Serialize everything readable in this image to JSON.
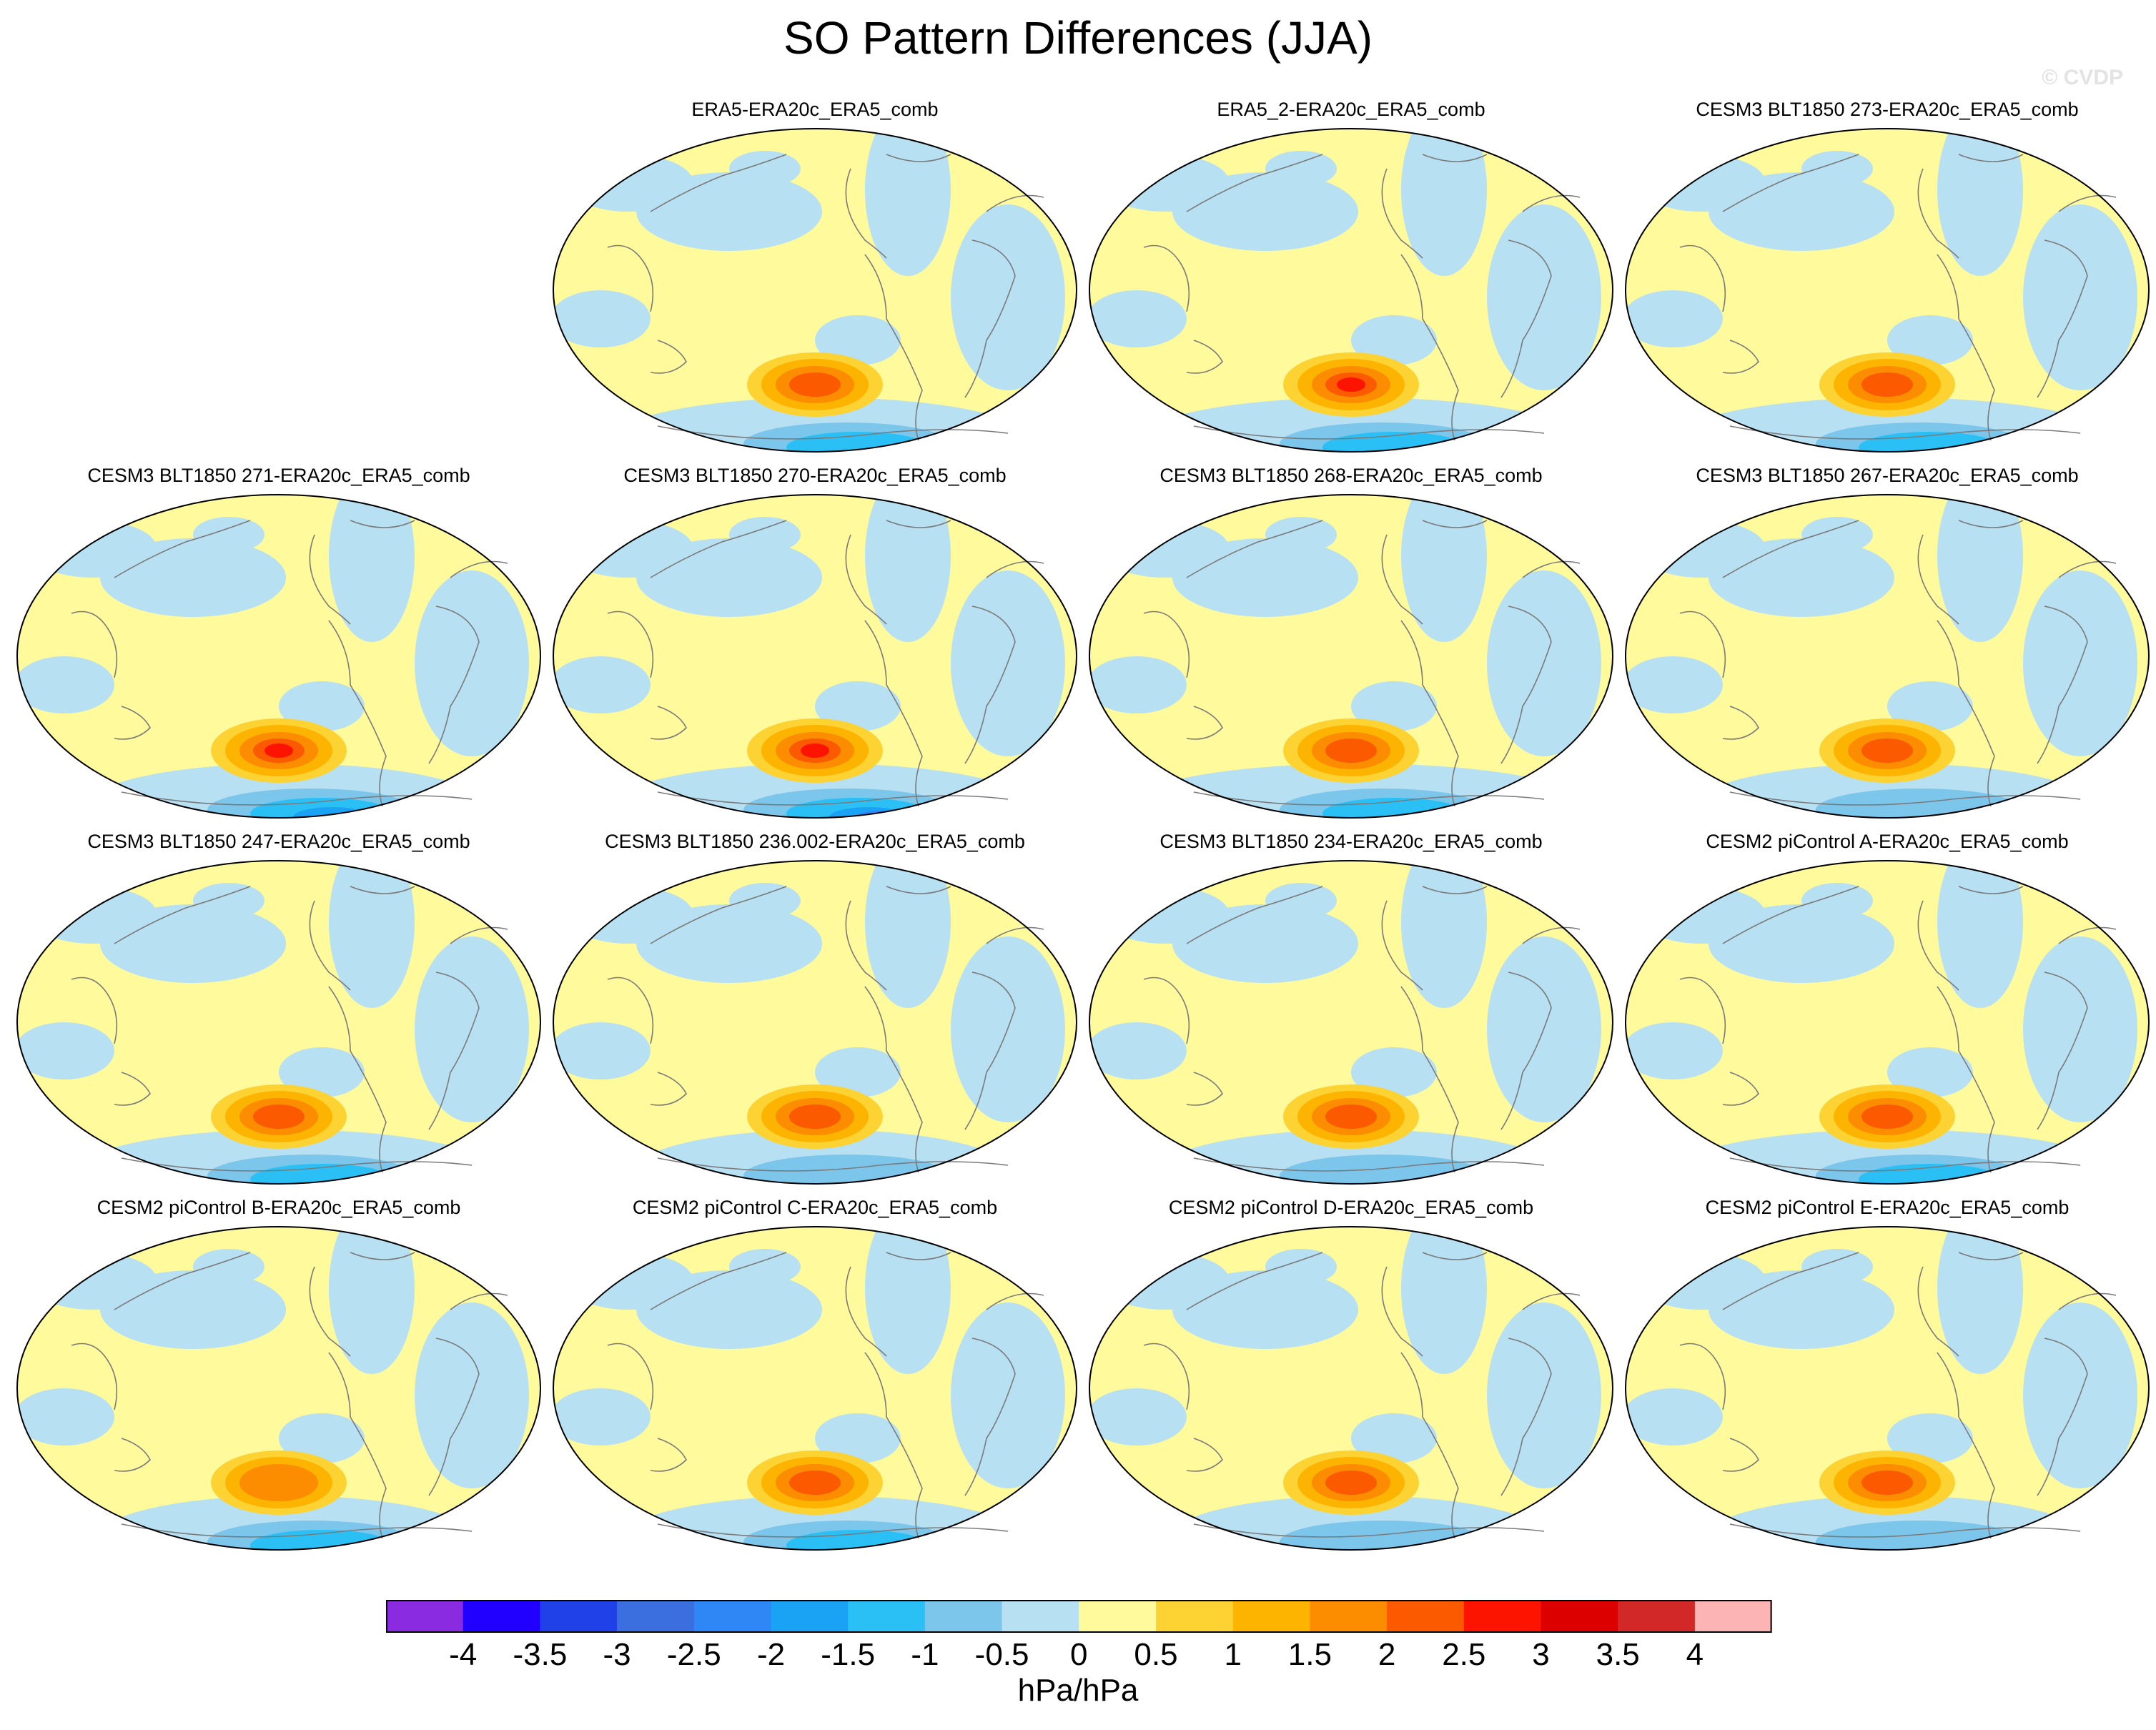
{
  "figure": {
    "title": "SO Pattern Differences (JJA)",
    "watermark": "© CVDP"
  },
  "panels": [
    {
      "title": "ERA5-ERA20c_ERA5_comb",
      "max": 2.0,
      "min": -1.5,
      "neg_band": 0.55
    },
    {
      "title": "ERA5_2-ERA20c_ERA5_comb",
      "max": 2.5,
      "min": -1.5,
      "neg_band": 0.6
    },
    {
      "title": "CESM3 BLT1850 273-ERA20c_ERA5_comb",
      "max": 2.0,
      "min": -1.5,
      "neg_band": 0.6
    },
    {
      "title": "CESM3 BLT1850 271-ERA20c_ERA5_comb",
      "max": 2.5,
      "min": -2.0,
      "neg_band": 0.5
    },
    {
      "title": "CESM3 BLT1850 270-ERA20c_ERA5_comb",
      "max": 2.5,
      "min": -2.5,
      "neg_band": 0.55
    },
    {
      "title": "CESM3 BLT1850 268-ERA20c_ERA5_comb",
      "max": 2.0,
      "min": -1.5,
      "neg_band": 0.65
    },
    {
      "title": "CESM3 BLT1850 267-ERA20c_ERA5_comb",
      "max": 2.0,
      "min": -1.0,
      "neg_band": 0.5
    },
    {
      "title": "CESM3 BLT1850 247-ERA20c_ERA5_comb",
      "max": 2.0,
      "min": -1.5,
      "neg_band": 0.55
    },
    {
      "title": "CESM3 BLT1850 236.002-ERA20c_ERA5_comb",
      "max": 2.0,
      "min": -1.0,
      "neg_band": 0.45
    },
    {
      "title": "CESM3 BLT1850 234-ERA20c_ERA5_comb",
      "max": 2.0,
      "min": -1.0,
      "neg_band": 0.5
    },
    {
      "title": "CESM2 piControl A-ERA20c_ERA5_comb",
      "max": 2.0,
      "min": -1.5,
      "neg_band": 0.6
    },
    {
      "title": "CESM2 piControl B-ERA20c_ERA5_comb",
      "max": 1.5,
      "min": -1.5,
      "neg_band": 0.45
    },
    {
      "title": "CESM2 piControl C-ERA20c_ERA5_comb",
      "max": 2.0,
      "min": -1.5,
      "neg_band": 0.5
    },
    {
      "title": "CESM2 piControl D-ERA20c_ERA5_comb",
      "max": 2.0,
      "min": -1.0,
      "neg_band": 0.45
    },
    {
      "title": "CESM2 piControl E-ERA20c_ERA5_comb",
      "max": 2.0,
      "min": -1.0,
      "neg_band": 0.45
    }
  ],
  "colorbar": {
    "units": "hPa/hPa",
    "colors": [
      "#8a2be2",
      "#2200ff",
      "#2040e8",
      "#3b6fe0",
      "#2f86f5",
      "#1aa3f5",
      "#2bc0f5",
      "#7cc6ec",
      "#b7e0f3",
      "#fffa9c",
      "#fcd332",
      "#fcb400",
      "#fc8c00",
      "#fc5a00",
      "#fc1400",
      "#dc0000",
      "#d22828",
      "#fcb4b4"
    ],
    "labels": [
      "-4",
      "-3.5",
      "-3",
      "-2.5",
      "-2",
      "-1.5",
      "-1",
      "-0.5",
      "0",
      "0.5",
      "1",
      "1.5",
      "2",
      "2.5",
      "3",
      "3.5",
      "4"
    ]
  }
}
